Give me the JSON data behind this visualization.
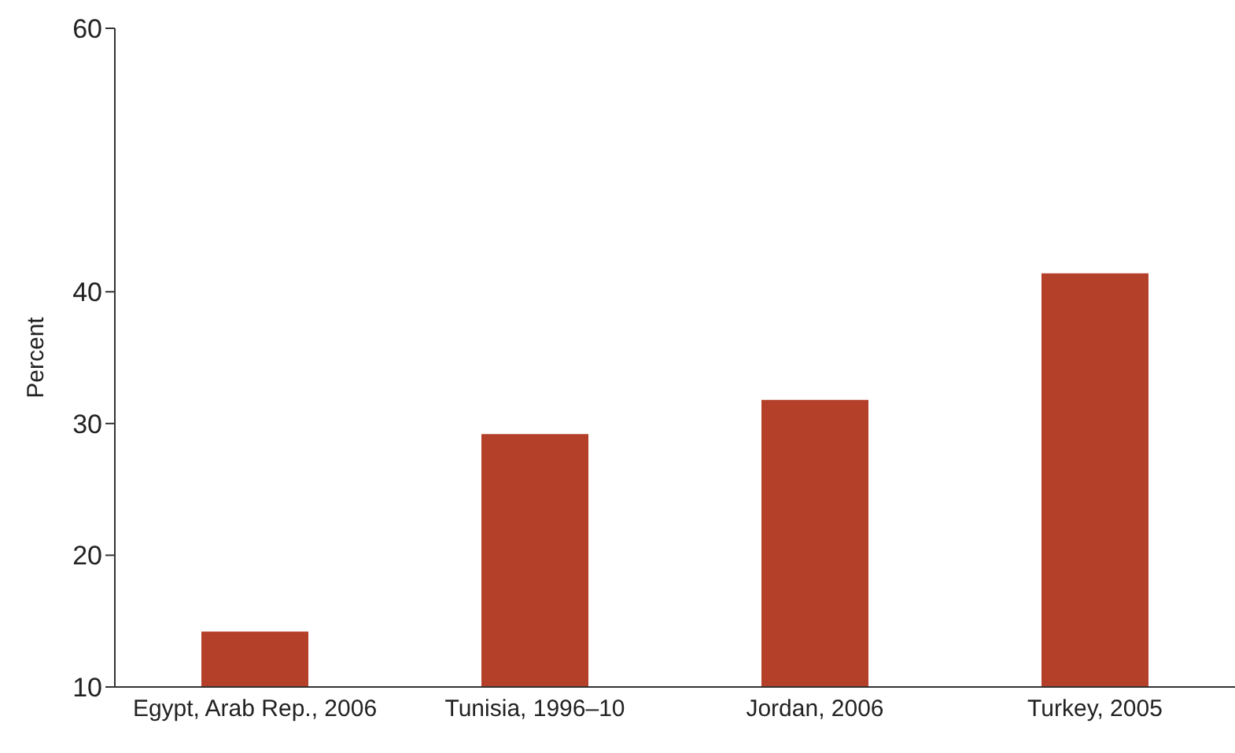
{
  "chart_data": {
    "type": "bar",
    "ylabel": "Percent",
    "categories": [
      "Egypt, Arab Rep., 2006",
      "Tunisia, 1996–10",
      "Jordan, 2006",
      "Turkey, 2005"
    ],
    "values": [
      14.2,
      29.2,
      31.8,
      41.4
    ],
    "color": "#b5402a",
    "ylim": [
      10,
      60
    ],
    "yticks": [
      10,
      20,
      30,
      40,
      60
    ],
    "grid": false,
    "legend": false
  }
}
